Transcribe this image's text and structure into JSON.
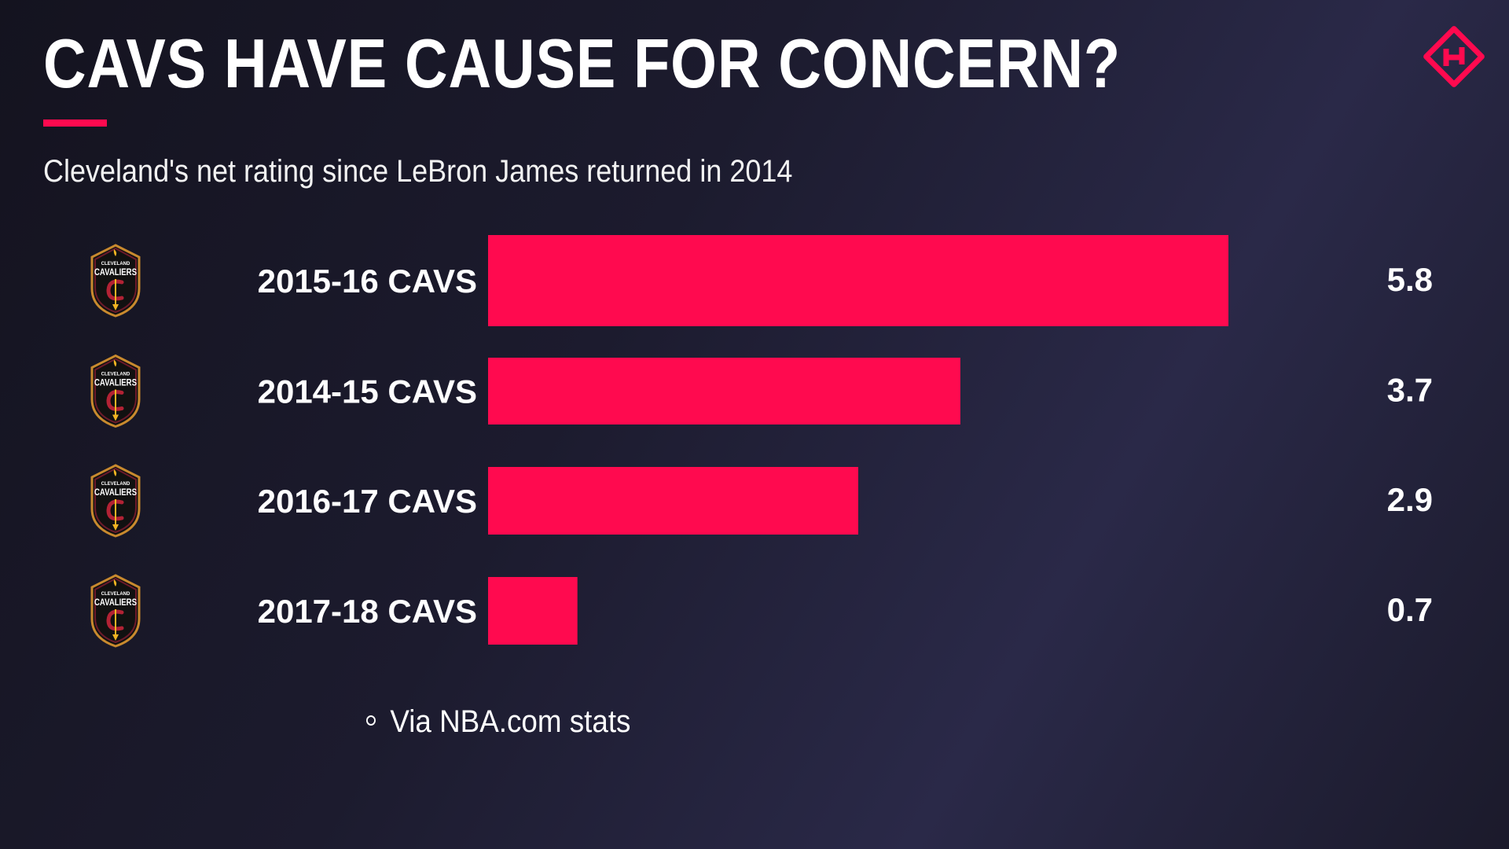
{
  "title": "CAVS HAVE CAUSE FOR CONCERN?",
  "subtitle": "Cleveland's net rating since LeBron James returned in 2014",
  "source": "Via NBA.com stats",
  "brand_icon": "sporting-news-logo-icon",
  "team_icon": "cavaliers-shield-logo-icon",
  "logo_lettering": [
    "CLEVELAND",
    "CAVALIERS"
  ],
  "colors": {
    "bar": "#ff0a4f",
    "accent": "#ff0a4f",
    "background": "#1c1b2e",
    "text": "#ffffff"
  },
  "chart_data": {
    "type": "bar",
    "orientation": "horizontal",
    "categories": [
      "2015-16 CAVS",
      "2014-15 CAVS",
      "2016-17 CAVS",
      "2017-18 CAVS"
    ],
    "values": [
      5.8,
      3.7,
      2.9,
      0.7
    ],
    "data_labels": [
      "5.8",
      "3.7",
      "2.9",
      "0.7"
    ],
    "xlim": [
      0,
      5.8
    ],
    "grid": false,
    "legend": "none"
  }
}
